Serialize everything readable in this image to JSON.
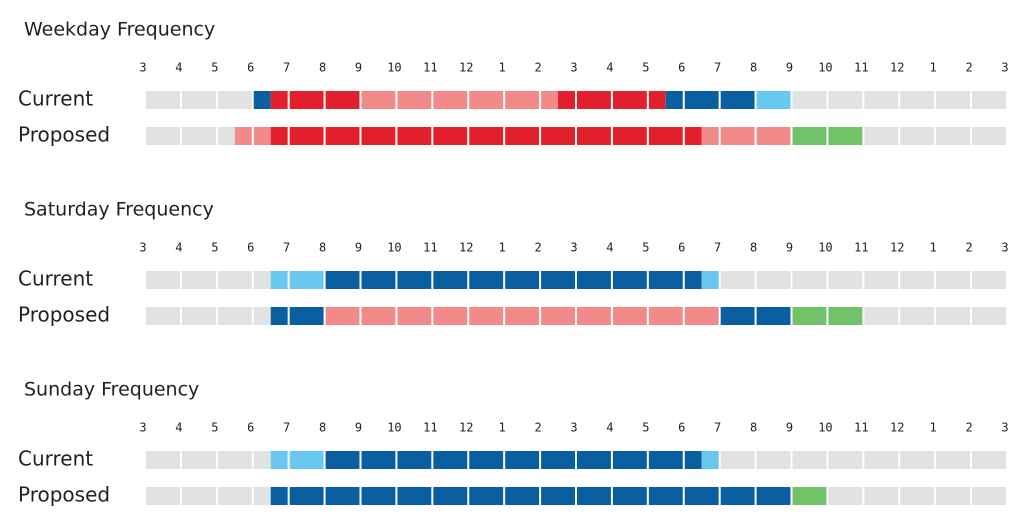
{
  "chart_data": [
    {
      "type": "timeline",
      "title": "Weekday Frequency",
      "xlim": [
        0,
        24
      ],
      "xticks": [
        {
          "value": 0,
          "label": "3"
        },
        {
          "value": 1,
          "label": "4"
        },
        {
          "value": 2,
          "label": "5"
        },
        {
          "value": 3,
          "label": "6"
        },
        {
          "value": 4,
          "label": "7"
        },
        {
          "value": 5,
          "label": "8"
        },
        {
          "value": 6,
          "label": "9"
        },
        {
          "value": 7,
          "label": "10"
        },
        {
          "value": 8,
          "label": "11"
        },
        {
          "value": 9,
          "label": "12"
        },
        {
          "value": 10,
          "label": "1"
        },
        {
          "value": 11,
          "label": "2"
        },
        {
          "value": 12,
          "label": "3"
        },
        {
          "value": 13,
          "label": "4"
        },
        {
          "value": 14,
          "label": "5"
        },
        {
          "value": 15,
          "label": "6"
        },
        {
          "value": 16,
          "label": "7"
        },
        {
          "value": 17,
          "label": "8"
        },
        {
          "value": 18,
          "label": "9"
        },
        {
          "value": 19,
          "label": "10"
        },
        {
          "value": 20,
          "label": "11"
        },
        {
          "value": 21,
          "label": "12"
        },
        {
          "value": 22,
          "label": "1"
        },
        {
          "value": 23,
          "label": "2"
        },
        {
          "value": 24,
          "label": "3"
        }
      ],
      "rows": [
        {
          "label": "Current",
          "segments": [
            {
              "start": 0,
              "end": 3,
              "color": "#e1e2e4"
            },
            {
              "start": 3,
              "end": 3.5,
              "color": "#0a5fa0"
            },
            {
              "start": 3.5,
              "end": 6,
              "color": "#e2202b"
            },
            {
              "start": 6,
              "end": 11.5,
              "color": "#f28a8a"
            },
            {
              "start": 11.5,
              "end": 14.5,
              "color": "#e2202b"
            },
            {
              "start": 14.5,
              "end": 17,
              "color": "#0a5fa0"
            },
            {
              "start": 17,
              "end": 18,
              "color": "#68c8f0"
            },
            {
              "start": 18,
              "end": 24,
              "color": "#e1e2e4"
            }
          ]
        },
        {
          "label": "Proposed",
          "segments": [
            {
              "start": 0,
              "end": 2.5,
              "color": "#e1e2e4"
            },
            {
              "start": 2.5,
              "end": 3.5,
              "color": "#f28a8a"
            },
            {
              "start": 3.5,
              "end": 15.5,
              "color": "#e2202b"
            },
            {
              "start": 15.5,
              "end": 18,
              "color": "#f28a8a"
            },
            {
              "start": 18,
              "end": 20,
              "color": "#72c26a"
            },
            {
              "start": 20,
              "end": 24,
              "color": "#e1e2e4"
            }
          ]
        }
      ]
    },
    {
      "type": "timeline",
      "title": "Saturday Frequency",
      "xlim": [
        0,
        24
      ],
      "xticks": [
        {
          "value": 0,
          "label": "3"
        },
        {
          "value": 1,
          "label": "4"
        },
        {
          "value": 2,
          "label": "5"
        },
        {
          "value": 3,
          "label": "6"
        },
        {
          "value": 4,
          "label": "7"
        },
        {
          "value": 5,
          "label": "8"
        },
        {
          "value": 6,
          "label": "9"
        },
        {
          "value": 7,
          "label": "10"
        },
        {
          "value": 8,
          "label": "11"
        },
        {
          "value": 9,
          "label": "12"
        },
        {
          "value": 10,
          "label": "1"
        },
        {
          "value": 11,
          "label": "2"
        },
        {
          "value": 12,
          "label": "3"
        },
        {
          "value": 13,
          "label": "4"
        },
        {
          "value": 14,
          "label": "5"
        },
        {
          "value": 15,
          "label": "6"
        },
        {
          "value": 16,
          "label": "7"
        },
        {
          "value": 17,
          "label": "8"
        },
        {
          "value": 18,
          "label": "9"
        },
        {
          "value": 19,
          "label": "10"
        },
        {
          "value": 20,
          "label": "11"
        },
        {
          "value": 21,
          "label": "12"
        },
        {
          "value": 22,
          "label": "1"
        },
        {
          "value": 23,
          "label": "2"
        },
        {
          "value": 24,
          "label": "3"
        }
      ],
      "rows": [
        {
          "label": "Current",
          "segments": [
            {
              "start": 0,
              "end": 3.5,
              "color": "#e1e2e4"
            },
            {
              "start": 3.5,
              "end": 5,
              "color": "#68c8f0"
            },
            {
              "start": 5,
              "end": 15.5,
              "color": "#0a5fa0"
            },
            {
              "start": 15.5,
              "end": 16,
              "color": "#68c8f0"
            },
            {
              "start": 16,
              "end": 24,
              "color": "#e1e2e4"
            }
          ]
        },
        {
          "label": "Proposed",
          "segments": [
            {
              "start": 0,
              "end": 3.5,
              "color": "#e1e2e4"
            },
            {
              "start": 3.5,
              "end": 5,
              "color": "#0a5fa0"
            },
            {
              "start": 5,
              "end": 16,
              "color": "#f28a8a"
            },
            {
              "start": 16,
              "end": 18,
              "color": "#0a5fa0"
            },
            {
              "start": 18,
              "end": 20,
              "color": "#72c26a"
            },
            {
              "start": 20,
              "end": 24,
              "color": "#e1e2e4"
            }
          ]
        }
      ]
    },
    {
      "type": "timeline",
      "title": "Sunday Frequency",
      "xlim": [
        0,
        24
      ],
      "xticks": [
        {
          "value": 0,
          "label": "3"
        },
        {
          "value": 1,
          "label": "4"
        },
        {
          "value": 2,
          "label": "5"
        },
        {
          "value": 3,
          "label": "6"
        },
        {
          "value": 4,
          "label": "7"
        },
        {
          "value": 5,
          "label": "8"
        },
        {
          "value": 6,
          "label": "9"
        },
        {
          "value": 7,
          "label": "10"
        },
        {
          "value": 8,
          "label": "11"
        },
        {
          "value": 9,
          "label": "12"
        },
        {
          "value": 10,
          "label": "1"
        },
        {
          "value": 11,
          "label": "2"
        },
        {
          "value": 12,
          "label": "3"
        },
        {
          "value": 13,
          "label": "4"
        },
        {
          "value": 14,
          "label": "5"
        },
        {
          "value": 15,
          "label": "6"
        },
        {
          "value": 16,
          "label": "7"
        },
        {
          "value": 17,
          "label": "8"
        },
        {
          "value": 18,
          "label": "9"
        },
        {
          "value": 19,
          "label": "10"
        },
        {
          "value": 20,
          "label": "11"
        },
        {
          "value": 21,
          "label": "12"
        },
        {
          "value": 22,
          "label": "1"
        },
        {
          "value": 23,
          "label": "2"
        },
        {
          "value": 24,
          "label": "3"
        }
      ],
      "rows": [
        {
          "label": "Current",
          "segments": [
            {
              "start": 0,
              "end": 3.5,
              "color": "#e1e2e4"
            },
            {
              "start": 3.5,
              "end": 5,
              "color": "#68c8f0"
            },
            {
              "start": 5,
              "end": 15.5,
              "color": "#0a5fa0"
            },
            {
              "start": 15.5,
              "end": 16,
              "color": "#68c8f0"
            },
            {
              "start": 16,
              "end": 24,
              "color": "#e1e2e4"
            }
          ]
        },
        {
          "label": "Proposed",
          "segments": [
            {
              "start": 0,
              "end": 3.5,
              "color": "#e1e2e4"
            },
            {
              "start": 3.5,
              "end": 18,
              "color": "#0a5fa0"
            },
            {
              "start": 18,
              "end": 19,
              "color": "#72c26a"
            },
            {
              "start": 19,
              "end": 24,
              "color": "#e1e2e4"
            }
          ]
        }
      ]
    }
  ]
}
